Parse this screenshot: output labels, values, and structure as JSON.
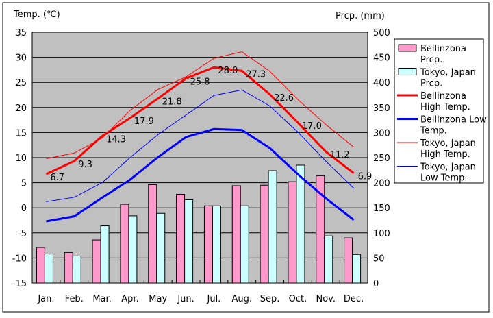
{
  "chart_data": {
    "type": "bar+line",
    "categories": [
      "Jan.",
      "Feb.",
      "Mar.",
      "Apr.",
      "May",
      "Jun.",
      "Jul.",
      "Aug.",
      "Sep.",
      "Oct.",
      "Nov.",
      "Dec."
    ],
    "left_axis": {
      "label": "Temp. (℃)",
      "range": [
        -15,
        35
      ],
      "ticks": [
        35,
        30,
        25,
        20,
        15,
        10,
        5,
        0,
        -5,
        -10,
        -15
      ]
    },
    "right_axis": {
      "label": "Prcp. (mm)",
      "range": [
        0,
        500
      ],
      "ticks": [
        500,
        450,
        400,
        350,
        300,
        250,
        200,
        150,
        100,
        50,
        0
      ]
    },
    "grid": true,
    "legend_position": "right",
    "bar_series": [
      {
        "name": "Bellinzona Prcp.",
        "legend": [
          "Bellinzona",
          "Prcp."
        ],
        "color": "#ff99cc",
        "values": [
          71,
          61,
          86,
          157,
          196,
          177,
          154,
          194,
          195,
          202,
          214,
          90
        ]
      },
      {
        "name": "Tokyo, Japan Prcp.",
        "legend": [
          "Tokyo, Japan",
          "Prcp."
        ],
        "color": "#ccffff",
        "values": [
          58,
          54,
          114,
          134,
          139,
          166,
          154,
          154,
          224,
          235,
          94,
          57
        ]
      }
    ],
    "line_series": [
      {
        "name": "Bellinzona High Temp.",
        "legend": [
          "Bellinzona",
          "High Temp."
        ],
        "color": "#ff0000",
        "width": 3,
        "values": [
          6.7,
          9.3,
          14.3,
          17.9,
          21.8,
          25.8,
          28.0,
          27.3,
          22.6,
          17.0,
          11.2,
          6.9
        ],
        "labels": [
          "6.7",
          "9.3",
          "14.3",
          "17.9",
          "21.8",
          "25.8",
          "28.0",
          "27.3",
          "22.6",
          "17.0",
          "11.2",
          "6.9"
        ]
      },
      {
        "name": "Bellinzona Low Temp.",
        "legend": [
          "Bellinzona Low",
          "Temp."
        ],
        "color": "#0000ff",
        "width": 3,
        "values": [
          -2.7,
          -1.7,
          2.0,
          5.6,
          10.1,
          14.1,
          15.7,
          15.5,
          11.9,
          6.7,
          1.9,
          -2.4
        ]
      },
      {
        "name": "Tokyo, Japan High Temp.",
        "legend": [
          "Tokyo, Japan",
          "High Temp."
        ],
        "color": "#ff0000",
        "width": 1,
        "values": [
          9.8,
          10.9,
          13.9,
          19.4,
          23.6,
          26.1,
          29.8,
          31.1,
          27.2,
          21.6,
          16.6,
          12.1
        ]
      },
      {
        "name": "Tokyo, Japan Low Temp.",
        "legend": [
          "Tokyo, Japan",
          "Low Temp."
        ],
        "color": "#0000ff",
        "width": 1,
        "values": [
          1.2,
          2.1,
          5.0,
          10.0,
          14.6,
          18.5,
          22.4,
          23.5,
          20.3,
          15.1,
          9.3,
          3.9
        ]
      }
    ]
  }
}
